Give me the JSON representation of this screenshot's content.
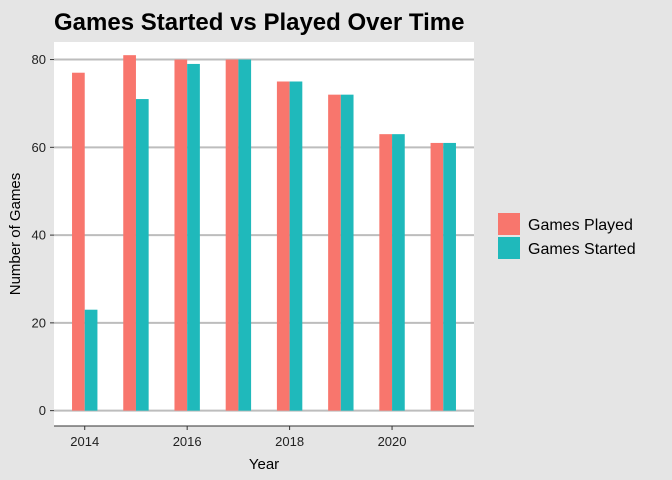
{
  "chart_data": {
    "type": "bar",
    "title": "Games Started vs Played Over Time",
    "xlabel": "Year",
    "ylabel": "Number of Games",
    "x": [
      2014,
      2015,
      2016,
      2017,
      2018,
      2019,
      2020,
      2021
    ],
    "x_ticks": [
      "2014",
      "2016",
      "2018",
      "2020"
    ],
    "y_ticks": [
      "0",
      "20",
      "40",
      "60",
      "80"
    ],
    "ylim": [
      -3.5,
      84
    ],
    "xlim": [
      2013.4,
      2021.6
    ],
    "grid": "horizontal major lines",
    "legend_position": "right",
    "series": [
      {
        "name": "Games Played",
        "color": "#f8766d",
        "values": [
          77,
          81,
          80,
          80,
          75,
          72,
          63,
          61
        ]
      },
      {
        "name": "Games Started",
        "color": "#1fb9bb",
        "values": [
          23,
          71,
          79,
          80,
          75,
          72,
          63,
          61
        ]
      }
    ]
  }
}
